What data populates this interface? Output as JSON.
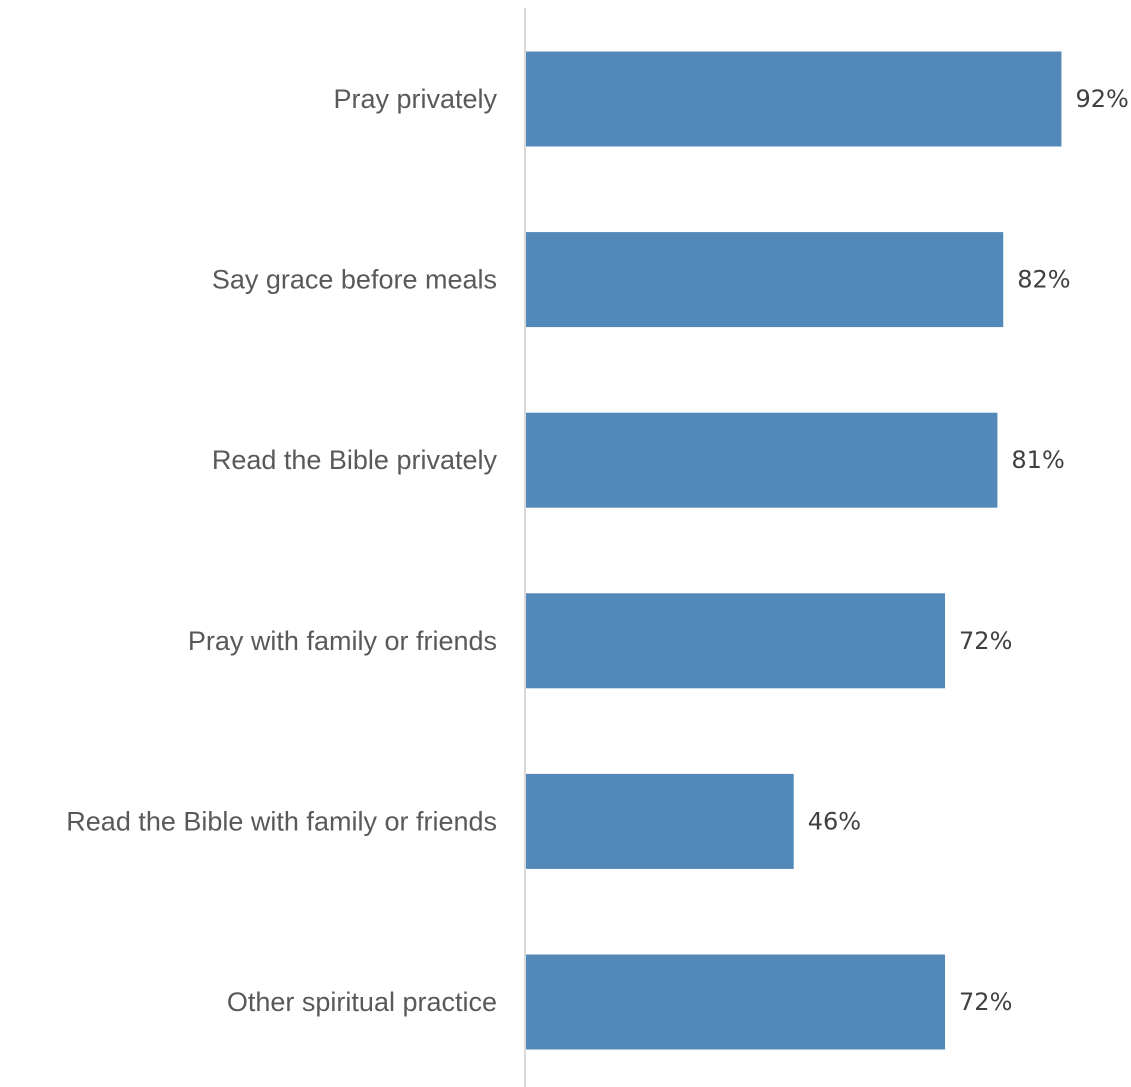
{
  "chart_data": {
    "type": "bar",
    "orientation": "horizontal",
    "categories": [
      "Pray privately",
      "Say grace before meals",
      "Read the Bible privately",
      "Pray with family or friends",
      "Read the Bible with family or friends",
      "Other spiritual practice"
    ],
    "values": [
      92,
      82,
      81,
      72,
      46,
      72
    ],
    "value_labels": [
      "92%",
      "82%",
      "81%",
      "72%",
      "46%",
      "72%"
    ],
    "unit": "%",
    "title": "",
    "xlabel": "",
    "ylabel": "",
    "xlim": [
      0,
      100
    ],
    "grid": false,
    "legend": "none",
    "colors": {
      "bar": "#5289b9",
      "axis": "#d9d9d9",
      "category_text": "#595959",
      "value_text": "#404040"
    }
  }
}
